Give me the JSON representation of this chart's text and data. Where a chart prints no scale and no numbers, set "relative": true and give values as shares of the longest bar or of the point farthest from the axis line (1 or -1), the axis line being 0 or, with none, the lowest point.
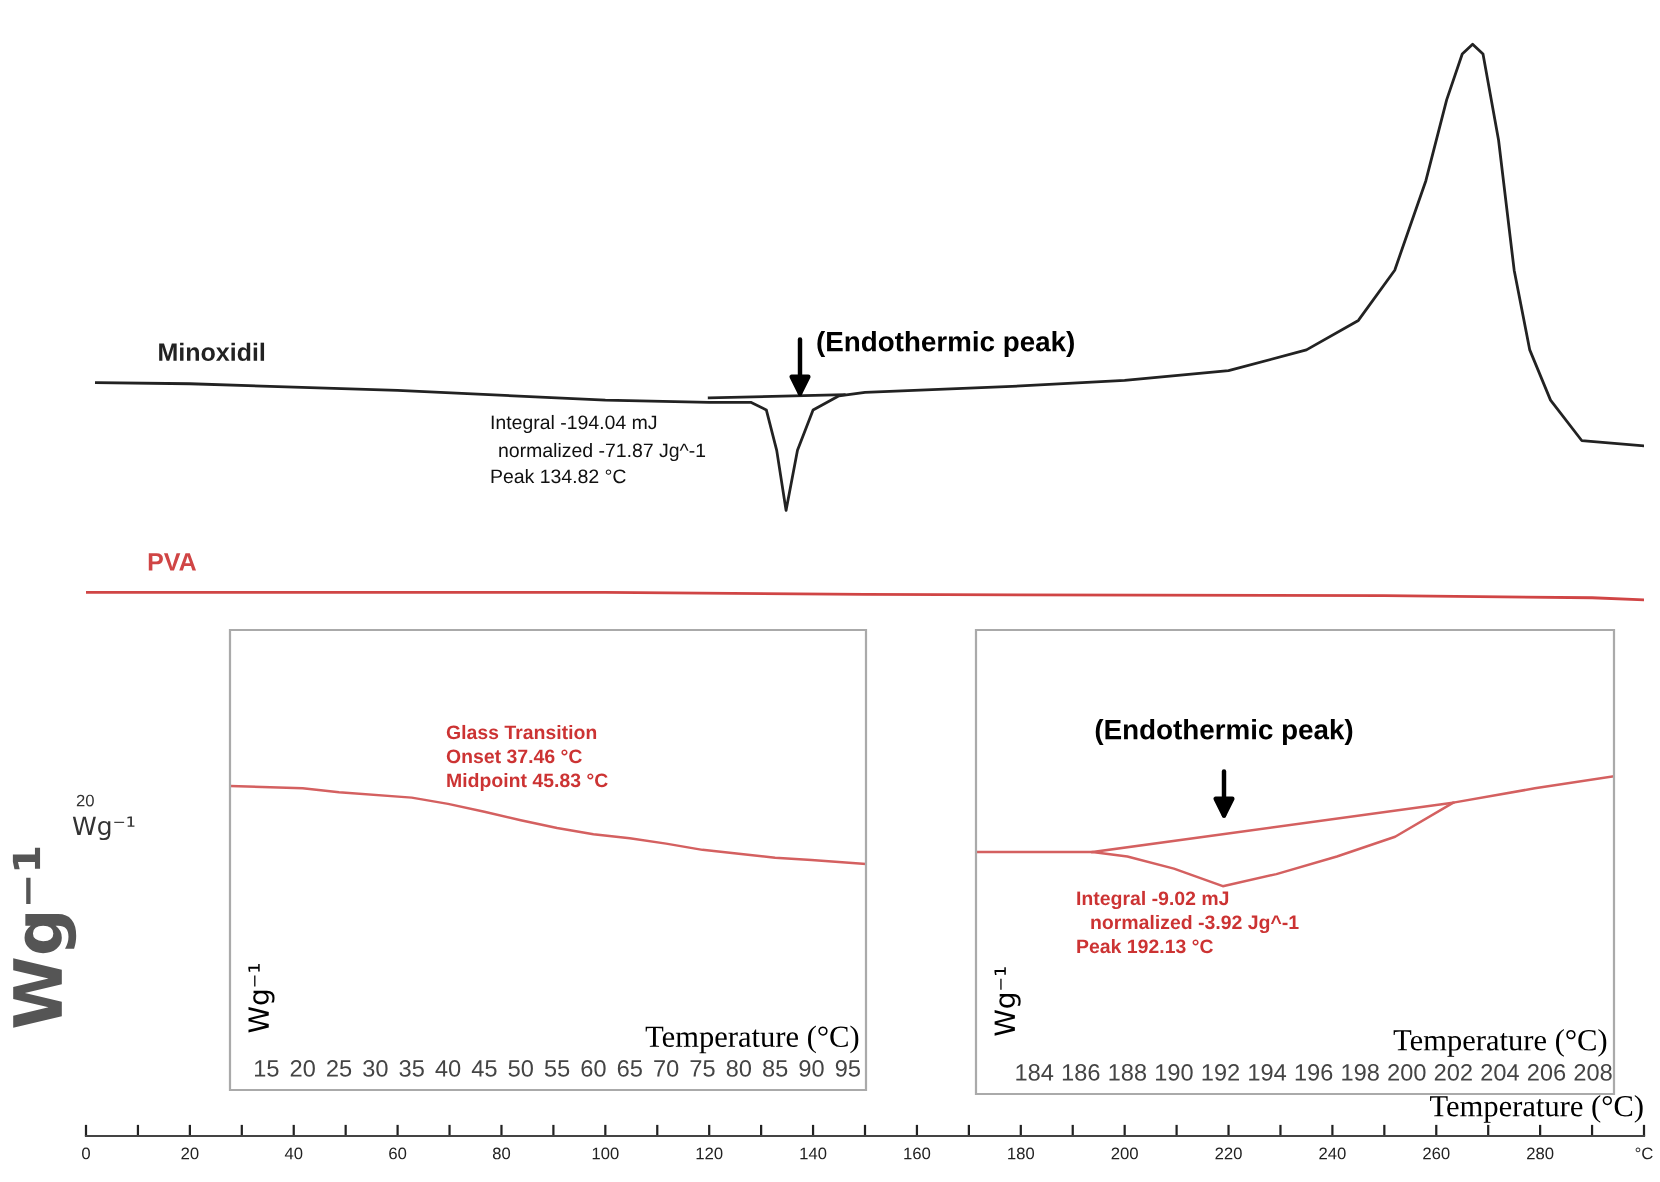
{
  "chart_data": [
    {
      "type": "line",
      "relative": true,
      "xlabel": "Temperature (°C)",
      "ylabel": "Wg⁻¹",
      "legend": false,
      "grid": false,
      "tick_labels": "x",
      "xlim": [
        0,
        300
      ],
      "xticks": [
        0,
        {
          "value": 10,
          "label": null
        },
        20,
        {
          "value": 30,
          "label": null
        },
        40,
        {
          "value": 50,
          "label": null
        },
        60,
        {
          "value": 70,
          "label": null
        },
        80,
        {
          "value": 90,
          "label": null
        },
        100,
        {
          "value": 110,
          "label": null
        },
        120,
        {
          "value": 130,
          "label": null
        },
        140,
        {
          "value": 150,
          "label": null
        },
        160,
        {
          "value": 170,
          "label": null
        },
        180,
        {
          "value": 190,
          "label": null
        },
        200,
        {
          "value": 210,
          "label": null
        },
        220,
        {
          "value": 230,
          "label": null
        },
        240,
        {
          "value": 250,
          "label": null
        },
        260,
        {
          "value": 270,
          "label": null
        },
        280,
        {
          "value": 290,
          "label": null
        },
        {
          "value": 300,
          "label": "°C"
        }
      ],
      "series": [
        {
          "name": "Minoxidil",
          "color": "#222222",
          "x": [
            2,
            20,
            60,
            100,
            120,
            128,
            131,
            133,
            134.8,
            137,
            140,
            145,
            150,
            180,
            200,
            220,
            235,
            245,
            252,
            258,
            262,
            265,
            267,
            269,
            272,
            275,
            278,
            282,
            288,
            300
          ],
          "values": [
            0.69,
            0.689,
            0.683,
            0.674,
            0.672,
            0.672,
            0.665,
            0.628,
            0.573,
            0.628,
            0.665,
            0.678,
            0.681,
            0.687,
            0.692,
            0.701,
            0.72,
            0.747,
            0.793,
            0.875,
            0.949,
            0.991,
            1,
            0.991,
            0.912,
            0.793,
            0.72,
            0.674,
            0.637,
            0.632
          ]
        },
        {
          "color": "#222222",
          "x": [
            120,
            146
          ],
          "values": [
            0.676,
            0.679
          ]
        },
        {
          "name": "PVA",
          "color": "#d04545",
          "x": [
            0,
            100,
            150,
            250,
            290,
            300
          ],
          "values": [
            0.498,
            0.498,
            0.496,
            0.495,
            0.493,
            0.491
          ]
        }
      ],
      "annotations": [
        "(Endothermic peak)",
        "Integral -194.04 mJ",
        "normalized -71.87 Jg^-1",
        "Peak 134.82 °C",
        "20",
        "Wg⁻¹"
      ]
    },
    {
      "type": "line",
      "relative": true,
      "xlabel": "Temperature (°C)",
      "ylabel": "Wg⁻¹",
      "legend": false,
      "grid": false,
      "tick_labels": "x",
      "xlim": [
        10,
        97.5
      ],
      "xticks": [
        15,
        20,
        25,
        30,
        35,
        40,
        45,
        50,
        55,
        60,
        65,
        70,
        75,
        80,
        85,
        90,
        95
      ],
      "series": [
        {
          "color": "#d46060",
          "x": [
            10,
            20,
            25,
            35,
            40,
            45,
            50,
            55,
            60,
            65,
            70,
            75,
            80,
            85,
            90,
            97.5
          ],
          "values": [
            1,
            0.97,
            0.92,
            0.85,
            0.77,
            0.67,
            0.56,
            0.46,
            0.38,
            0.33,
            0.26,
            0.18,
            0.13,
            0.08,
            0.05,
            0
          ]
        }
      ],
      "annotations": [
        "Glass Transition",
        "Onset 37.46 °C",
        "Midpoint 45.83 °C"
      ]
    },
    {
      "type": "line",
      "relative": true,
      "xlabel": "Temperature (°C)",
      "ylabel": "Wg⁻¹",
      "legend": false,
      "grid": false,
      "tick_labels": "x",
      "xlim": [
        181.5,
        208.9
      ],
      "xticks": [
        184,
        186,
        188,
        190,
        192,
        194,
        196,
        198,
        200,
        202,
        204,
        206,
        208
      ],
      "series": [
        {
          "color": "#d46060",
          "x": [
            181.5,
            186.5,
            188,
            190,
            192.1,
            194.4,
            197,
            199.5,
            202,
            205.5,
            208.9
          ],
          "values": [
            0.31,
            0.31,
            0.27,
            0.16,
            0,
            0.11,
            0.27,
            0.45,
            0.76,
            0.89,
            1
          ]
        },
        {
          "color": "#d46060",
          "x": [
            186.5,
            202
          ],
          "values": [
            0.31,
            0.76
          ]
        }
      ],
      "annotations": [
        "(Endothermic peak)",
        "Integral -9.02 mJ",
        "normalized -3.92 Jg^-1",
        "Peak 192.13 °C"
      ]
    }
  ]
}
